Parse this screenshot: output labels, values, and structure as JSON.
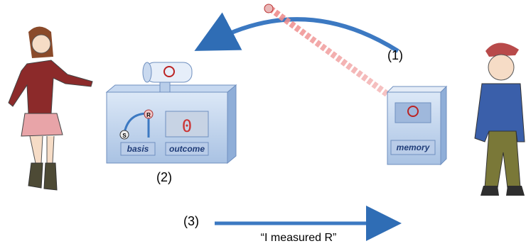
{
  "labels": {
    "step1": "(1)",
    "step2": "(2)",
    "step3": "(3)"
  },
  "device": {
    "basis": "basis",
    "outcome": "outcome",
    "display": "0",
    "dial_s": "S",
    "dial_r": "R"
  },
  "memory": {
    "label": "memory"
  },
  "message": "“I measured R”"
}
